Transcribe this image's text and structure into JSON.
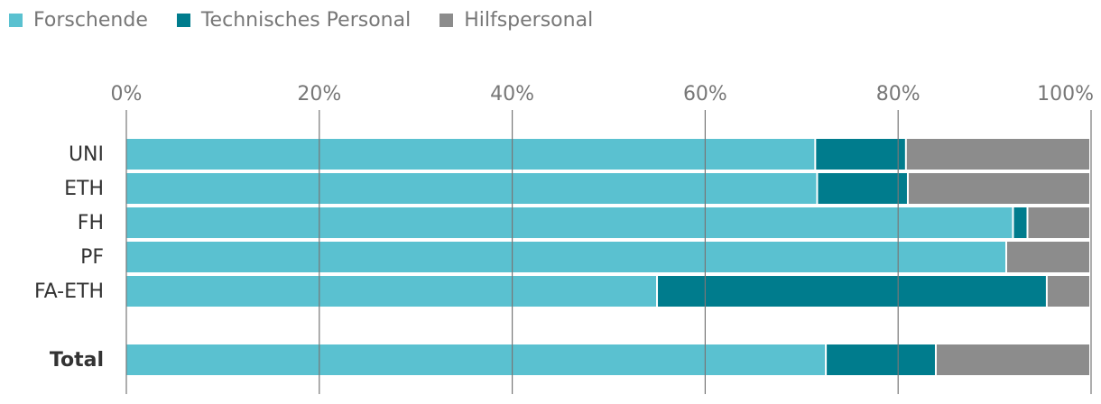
{
  "chart_data": {
    "type": "bar",
    "orientation": "horizontal",
    "stacked": true,
    "categories": [
      "UNI",
      "ETH",
      "FH",
      "PF",
      "FA-ETH",
      "Total"
    ],
    "series": [
      {
        "name": "Forschende",
        "color": "#5ac1d0",
        "values": [
          71.5,
          71.7,
          92.0,
          91.3,
          55.1,
          72.6
        ]
      },
      {
        "name": "Technisches Personal",
        "color": "#007c8d",
        "values": [
          9.4,
          9.4,
          1.5,
          0.0,
          40.4,
          11.4
        ]
      },
      {
        "name": "Hilfspersonal",
        "color": "#8c8c8c",
        "values": [
          19.1,
          18.9,
          6.5,
          8.7,
          4.5,
          16.0
        ]
      }
    ],
    "xticks": [
      "0%",
      "20%",
      "40%",
      "60%",
      "80%",
      "100%"
    ],
    "xlim": [
      0,
      100
    ],
    "bold_categories": [
      "Total"
    ],
    "grid": true,
    "legend_position": "top-left"
  }
}
